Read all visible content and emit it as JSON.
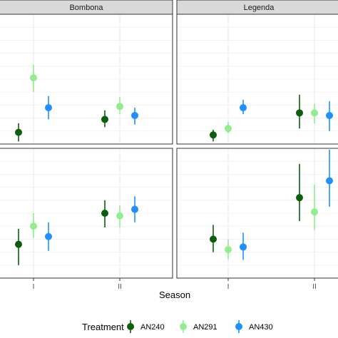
{
  "chart_data": {
    "type": "scatter",
    "style": "point-range with vertical error bars, faceted 2x2",
    "xlabel": "Season",
    "ylabel": "",
    "x_categories": [
      "I",
      "II"
    ],
    "series": [
      {
        "name": "AN240",
        "color": "#0b5e0b"
      },
      {
        "name": "AN291",
        "color": "#90ee90"
      },
      {
        "name": "AN430",
        "color": "#1e90ff"
      }
    ],
    "legend": {
      "title": "Treatment",
      "position": "bottom"
    },
    "facets": [
      {
        "strip": "Bombona",
        "ylim": [
          0,
          10
        ],
        "points": [
          {
            "season": "I",
            "treatment": "AN240",
            "y": 0.9,
            "low": 0.2,
            "high": 1.6
          },
          {
            "season": "I",
            "treatment": "AN291",
            "y": 5.1,
            "low": 4.0,
            "high": 6.1
          },
          {
            "season": "I",
            "treatment": "AN430",
            "y": 2.8,
            "low": 1.9,
            "high": 3.7
          },
          {
            "season": "II",
            "treatment": "AN240",
            "y": 1.9,
            "low": 1.3,
            "high": 2.6
          },
          {
            "season": "II",
            "treatment": "AN291",
            "y": 2.9,
            "low": 2.3,
            "high": 3.6
          },
          {
            "season": "II",
            "treatment": "AN430",
            "y": 2.2,
            "low": 1.5,
            "high": 2.8
          }
        ]
      },
      {
        "strip": "Legenda",
        "ylim": [
          0,
          10
        ],
        "points": [
          {
            "season": "I",
            "treatment": "AN240",
            "y": 0.7,
            "low": 0.2,
            "high": 1.1
          },
          {
            "season": "I",
            "treatment": "AN291",
            "y": 1.2,
            "low": 0.8,
            "high": 1.7
          },
          {
            "season": "I",
            "treatment": "AN430",
            "y": 2.8,
            "low": 2.3,
            "high": 3.4
          },
          {
            "season": "II",
            "treatment": "AN240",
            "y": 2.4,
            "low": 1.2,
            "high": 3.8
          },
          {
            "season": "II",
            "treatment": "AN291",
            "y": 2.4,
            "low": 1.6,
            "high": 3.1
          },
          {
            "season": "II",
            "treatment": "AN430",
            "y": 2.2,
            "low": 1.0,
            "high": 3.3
          }
        ]
      },
      {
        "strip": "",
        "ylim": [
          0,
          10
        ],
        "points": [
          {
            "season": "I",
            "treatment": "AN240",
            "y": 2.6,
            "low": 1.0,
            "high": 3.8
          },
          {
            "season": "I",
            "treatment": "AN291",
            "y": 4.0,
            "low": 3.1,
            "high": 5.0
          },
          {
            "season": "I",
            "treatment": "AN430",
            "y": 3.2,
            "low": 2.1,
            "high": 4.3
          },
          {
            "season": "II",
            "treatment": "AN240",
            "y": 5.0,
            "low": 3.9,
            "high": 6.0
          },
          {
            "season": "II",
            "treatment": "AN291",
            "y": 4.8,
            "low": 3.9,
            "high": 5.6
          },
          {
            "season": "II",
            "treatment": "AN430",
            "y": 5.3,
            "low": 4.3,
            "high": 6.3
          }
        ]
      },
      {
        "strip": "",
        "ylim": [
          0,
          10
        ],
        "points": [
          {
            "season": "I",
            "treatment": "AN240",
            "y": 3.0,
            "low": 2.0,
            "high": 4.1
          },
          {
            "season": "I",
            "treatment": "AN291",
            "y": 2.2,
            "low": 1.4,
            "high": 3.0
          },
          {
            "season": "I",
            "treatment": "AN430",
            "y": 2.4,
            "low": 1.4,
            "high": 3.5
          },
          {
            "season": "II",
            "treatment": "AN240",
            "y": 6.2,
            "low": 4.4,
            "high": 8.8
          },
          {
            "season": "II",
            "treatment": "AN291",
            "y": 5.1,
            "low": 3.7,
            "high": 7.2
          },
          {
            "season": "II",
            "treatment": "AN430",
            "y": 7.5,
            "low": 5.5,
            "high": 9.9
          }
        ]
      }
    ]
  }
}
